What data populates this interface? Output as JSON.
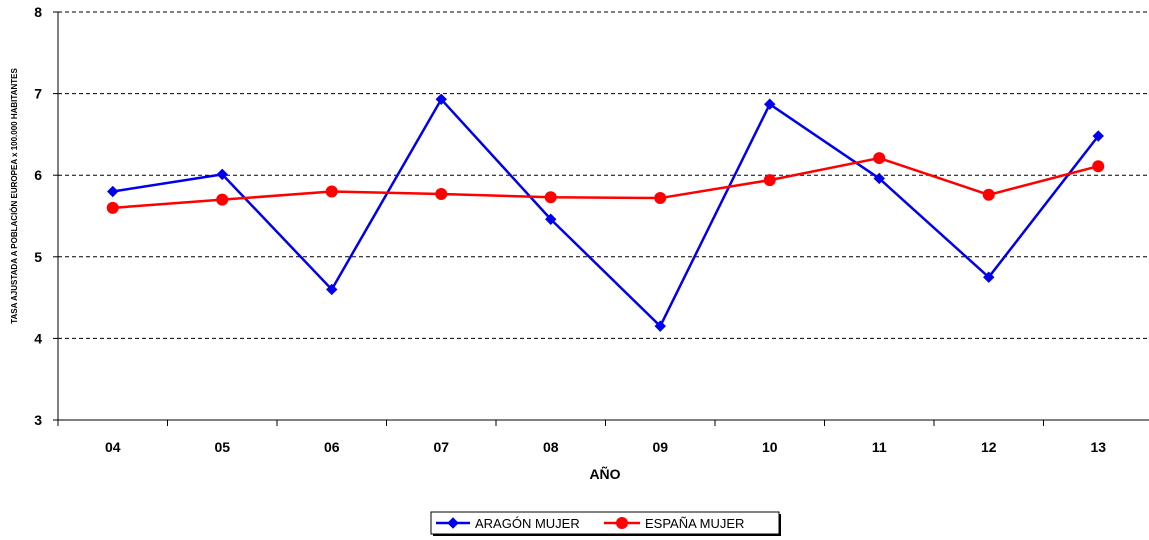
{
  "chart_data": {
    "type": "line",
    "title": "",
    "xlabel": "AÑO",
    "ylabel": "TASA AJUSTADA A POBLACIÓN EUROPEA x 100.000 HABITANTES",
    "categories": [
      "04",
      "05",
      "06",
      "07",
      "08",
      "09",
      "10",
      "11",
      "12",
      "13"
    ],
    "ylim": [
      3,
      8
    ],
    "yticks": [
      "3",
      "4",
      "5",
      "6",
      "7",
      "8"
    ],
    "grid": "horizontal dashed",
    "legend_position": "bottom",
    "series": [
      {
        "name": "ARAGÓN MUJER",
        "color": "#0000ee",
        "marker": "diamond",
        "values": [
          5.8,
          6.01,
          4.6,
          6.93,
          5.46,
          4.15,
          6.87,
          5.96,
          4.75,
          6.48
        ]
      },
      {
        "name": "ESPAÑA MUJER",
        "color": "#ff0000",
        "marker": "circle",
        "values": [
          5.6,
          5.7,
          5.8,
          5.77,
          5.73,
          5.72,
          5.94,
          6.21,
          5.76,
          6.11
        ]
      }
    ]
  }
}
